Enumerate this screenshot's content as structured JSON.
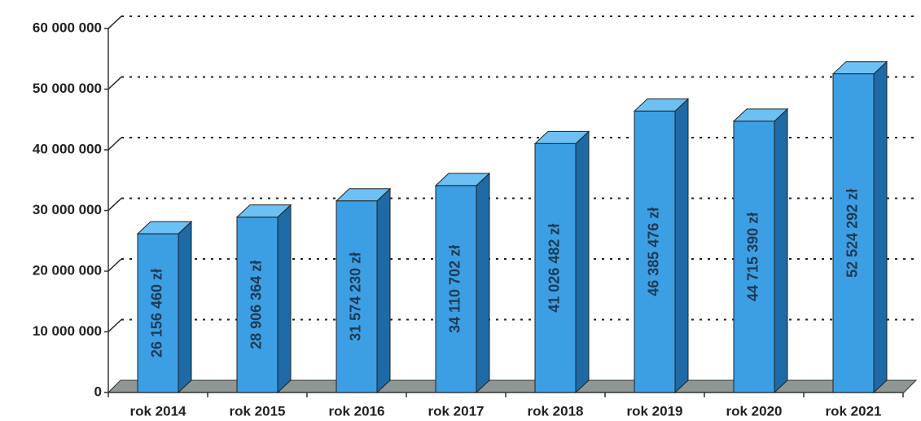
{
  "chart_data": {
    "type": "bar",
    "categories": [
      "rok 2014",
      "rok 2015",
      "rok 2016",
      "rok 2017",
      "rok 2018",
      "rok 2019",
      "rok 2020",
      "rok 2021"
    ],
    "values": [
      26156460,
      28906364,
      31574230,
      34110702,
      41026482,
      46385476,
      44715390,
      52524292
    ],
    "value_labels": [
      "26 156 460 zł",
      "28 906 364 zł",
      "31 574 230 zł",
      "34 110 702 zł",
      "41 026 482 zł",
      "46 385 476 zł",
      "44 715 390 zł",
      "52 524 292 zł"
    ],
    "color": "#3d9fe3",
    "ylim": [
      0,
      60000000
    ],
    "yticks": [
      0,
      {
        "value": 10000000,
        "label": "10 000 000"
      },
      {
        "value": 20000000,
        "label": "20 000 000"
      },
      {
        "value": 30000000,
        "label": "30 000 000"
      },
      {
        "value": 40000000,
        "label": "40 000 000"
      },
      {
        "value": 50000000,
        "label": "50 000 000"
      },
      {
        "value": 60000000,
        "label": "60 000 000"
      }
    ],
    "grid": true
  }
}
